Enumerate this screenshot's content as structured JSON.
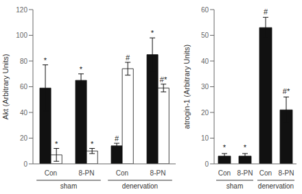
{
  "chart_data": [
    {
      "type": "bar",
      "ylabel": "Akt (Arbitrary Units)",
      "categories": [
        "Con",
        "8-PN",
        "Con",
        "8-PN"
      ],
      "groups": [
        "sham",
        "sham",
        "denervation",
        "denervation"
      ],
      "ylim": [
        0,
        120
      ],
      "yticks": [
        0,
        20,
        40,
        60,
        80,
        100,
        120
      ],
      "grid": false,
      "series": [
        {
          "color": "#111111",
          "values": [
            59,
            65,
            14,
            85
          ],
          "errors": [
            18,
            5,
            2,
            13
          ],
          "annotations": [
            "*",
            "*",
            "#",
            "*"
          ],
          "annotation_y": [
            78,
            71,
            17,
            99
          ]
        },
        {
          "color": "#ffffff",
          "values": [
            7,
            10,
            74,
            59
          ],
          "errors": [
            5,
            2,
            5,
            3
          ],
          "annotations": [
            "*",
            "*",
            "#",
            "#*"
          ],
          "annotation_y": [
            13,
            13,
            80,
            63
          ]
        }
      ]
    },
    {
      "type": "bar",
      "ylabel": "atrogin-1 (Arbitrary Units)",
      "categories": [
        "Con",
        "8-PN",
        "Con",
        "8-PN"
      ],
      "groups": [
        "sham",
        "sham",
        "denervation",
        "denervation"
      ],
      "ylim": [
        0,
        60
      ],
      "yticks": [
        0,
        10,
        20,
        30,
        40,
        50,
        60
      ],
      "grid": false,
      "series": [
        {
          "color": "#111111",
          "values": [
            3,
            3,
            53,
            21
          ],
          "errors": [
            1,
            1,
            4,
            5
          ],
          "annotations": [
            "*",
            "*",
            "#",
            "#*"
          ],
          "annotation_y": [
            5,
            5,
            58,
            27
          ]
        }
      ]
    }
  ]
}
